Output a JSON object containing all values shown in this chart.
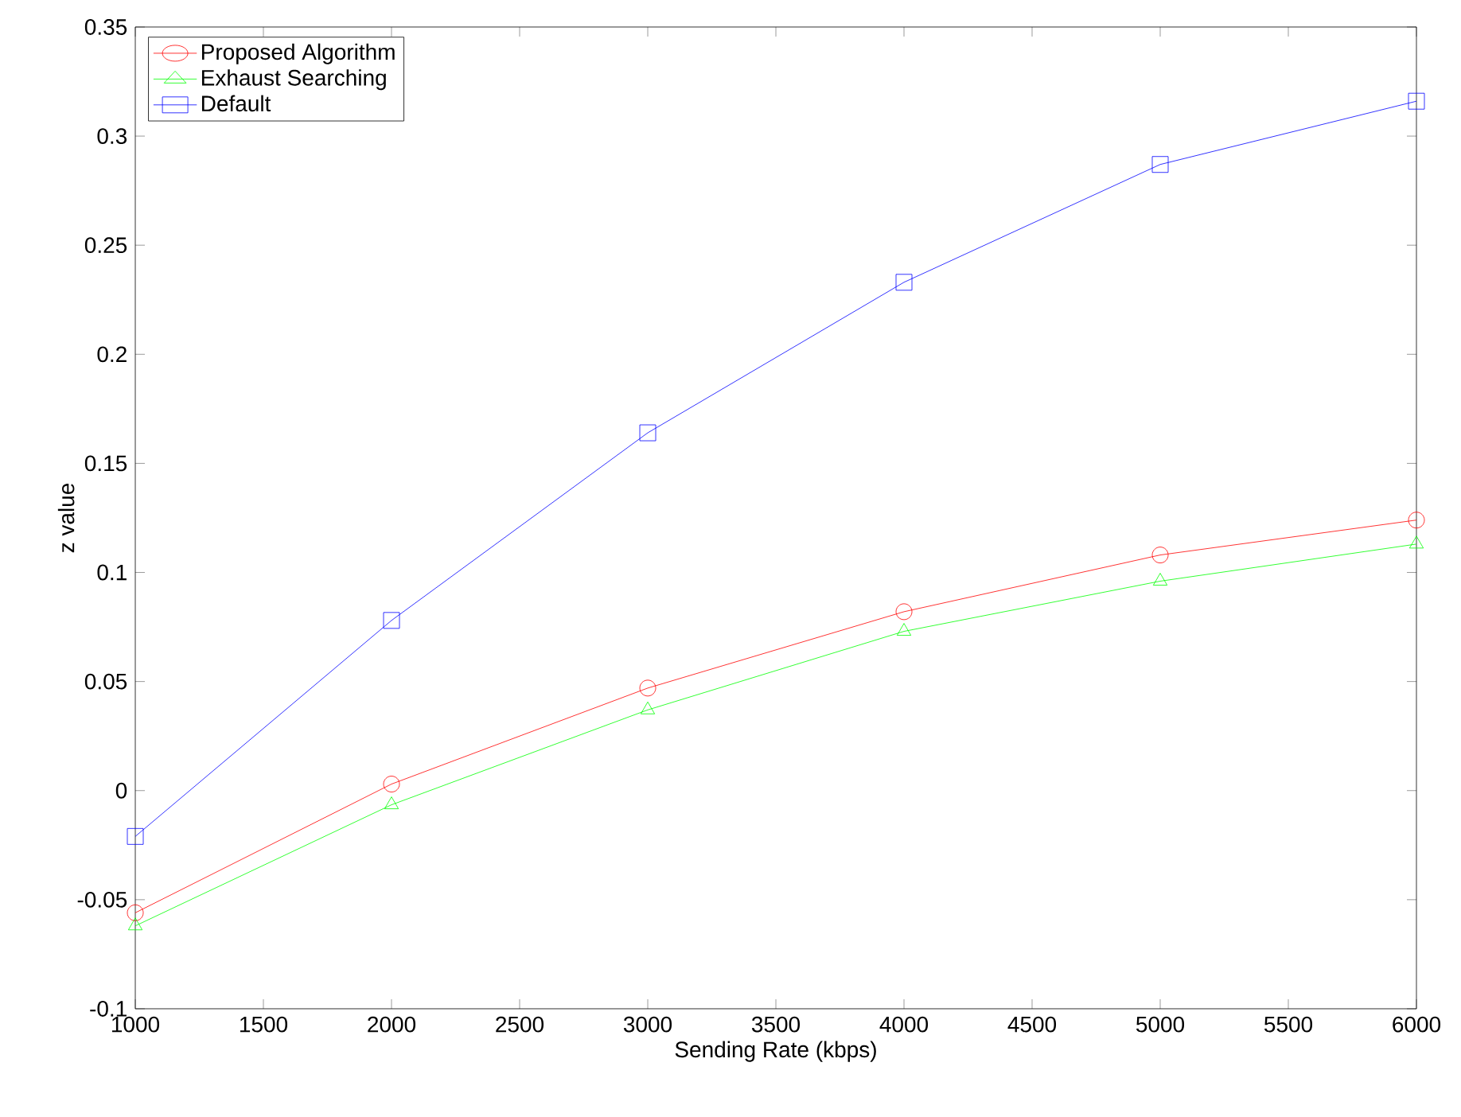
{
  "chart_data": {
    "type": "line",
    "xlabel": "Sending Rate (kbps)",
    "ylabel": "z value",
    "x": [
      1000,
      2000,
      3000,
      4000,
      5000,
      6000
    ],
    "series": [
      {
        "name": "Proposed Algorithm",
        "color": "#ff0000",
        "marker": "circle",
        "values": [
          -0.056,
          0.003,
          0.047,
          0.082,
          0.108,
          0.124
        ]
      },
      {
        "name": "Exhaust Searching",
        "color": "#00ff00",
        "marker": "triangle",
        "values": [
          -0.062,
          -0.0065,
          0.037,
          0.073,
          0.096,
          0.113
        ]
      },
      {
        "name": "Default",
        "color": "#0000ff",
        "marker": "square",
        "values": [
          -0.021,
          0.078,
          0.164,
          0.233,
          0.287,
          0.316
        ]
      }
    ],
    "xlim": [
      1000,
      6000
    ],
    "xticks": [
      1000,
      1500,
      2000,
      2500,
      3000,
      3500,
      4000,
      4500,
      5000,
      5500,
      6000
    ],
    "ylim": [
      -0.1,
      0.35
    ],
    "yticks": [
      -0.1,
      -0.05,
      0,
      0.05,
      0.1,
      0.15,
      0.2,
      0.25,
      0.3,
      0.35
    ],
    "grid": false,
    "legend": "top left",
    "line_style": "solid"
  }
}
